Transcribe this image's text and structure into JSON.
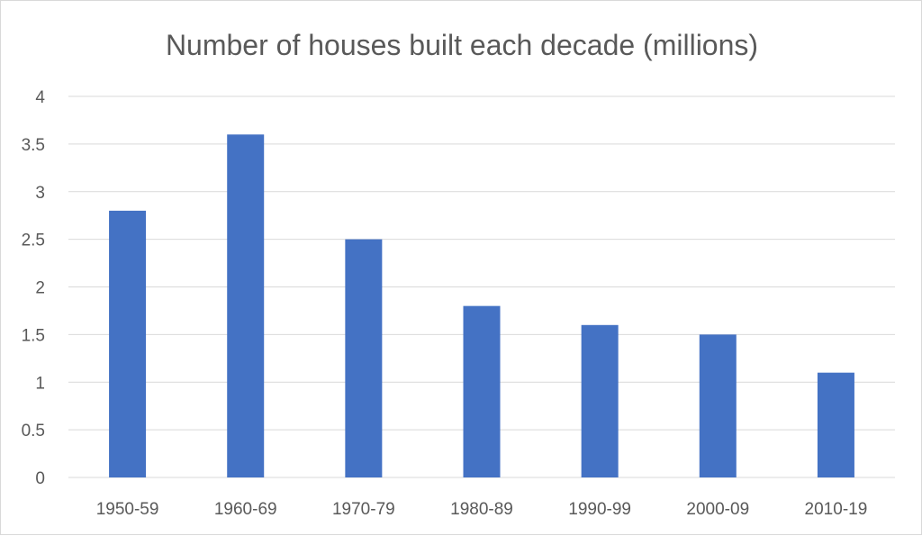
{
  "chart_data": {
    "type": "bar",
    "title": "Number of houses built each decade (millions)",
    "categories": [
      "1950-59",
      "1960-69",
      "1970-79",
      "1980-89",
      "1990-99",
      "2000-09",
      "2010-19"
    ],
    "values": [
      2.8,
      3.6,
      2.5,
      1.8,
      1.6,
      1.5,
      1.1
    ],
    "ylim": [
      0,
      4
    ],
    "yticks": [
      "0",
      "0.5",
      "1",
      "1.5",
      "2",
      "2.5",
      "3",
      "3.5",
      "4"
    ],
    "grid": true,
    "legend": "none",
    "bar_color": "#4472c4"
  }
}
